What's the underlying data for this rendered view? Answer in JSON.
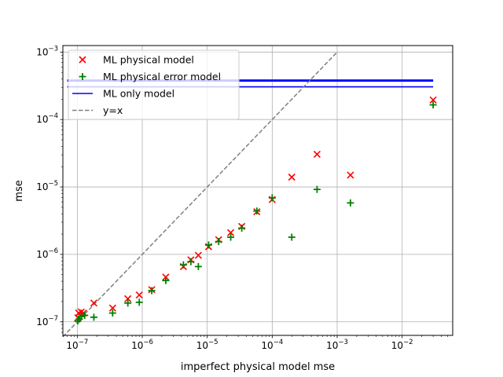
{
  "chart_data": {
    "type": "scatter",
    "title": "",
    "xlabel": "imperfect physical model mse",
    "ylabel": "mse",
    "xscale": "log",
    "yscale": "log",
    "xlim": [
      6e-08,
      0.06
    ],
    "ylim": [
      6.3e-08,
      0.00125
    ],
    "grid": true,
    "legend_position": "top-left",
    "x_ticks": [
      {
        "value": 1e-07,
        "base": "10",
        "exp": "−7"
      },
      {
        "value": 1e-06,
        "base": "10",
        "exp": "−6"
      },
      {
        "value": 1e-05,
        "base": "10",
        "exp": "−5"
      },
      {
        "value": 0.0001,
        "base": "10",
        "exp": "−4"
      },
      {
        "value": 0.001,
        "base": "10",
        "exp": "−3"
      },
      {
        "value": 0.01,
        "base": "10",
        "exp": "−2"
      }
    ],
    "y_ticks": [
      {
        "value": 1e-07,
        "base": "10",
        "exp": "−7"
      },
      {
        "value": 1e-06,
        "base": "10",
        "exp": "−6"
      },
      {
        "value": 1e-05,
        "base": "10",
        "exp": "−5"
      },
      {
        "value": 0.0001,
        "base": "10",
        "exp": "−4"
      },
      {
        "value": 0.001,
        "base": "10",
        "exp": "−3"
      }
    ],
    "series": [
      {
        "name": "ML physical model",
        "kind": "scatter",
        "marker": "x",
        "color": "#ff0000",
        "points": [
          [
            1.02e-07,
            1.15e-07
          ],
          [
            1.05e-07,
            1.35e-07
          ],
          [
            1.15e-07,
            1.4e-07
          ],
          [
            1.25e-07,
            1.35e-07
          ],
          [
            1.8e-07,
            1.9e-07
          ],
          [
            3.5e-07,
            1.6e-07
          ],
          [
            6e-07,
            2.2e-07
          ],
          [
            9e-07,
            2.5e-07
          ],
          [
            1.4e-06,
            3e-07
          ],
          [
            2.3e-06,
            4.6e-07
          ],
          [
            4.3e-06,
            6.6e-07
          ],
          [
            5.6e-06,
            8.3e-07
          ],
          [
            7.3e-06,
            9.7e-07
          ],
          [
            1.05e-05,
            1.3e-06
          ],
          [
            1.5e-05,
            1.65e-06
          ],
          [
            2.3e-05,
            2.1e-06
          ],
          [
            3.4e-05,
            2.6e-06
          ],
          [
            5.8e-05,
            4.3e-06
          ],
          [
            0.0001,
            6.5e-06
          ],
          [
            0.0002,
            1.4e-05
          ],
          [
            0.00049,
            3.05e-05
          ],
          [
            0.0016,
            1.5e-05
          ],
          [
            0.03,
            0.000195
          ]
        ]
      },
      {
        "name": "ML physical error model",
        "kind": "scatter",
        "marker": "+",
        "color": "#008000",
        "points": [
          [
            1.02e-07,
            1.03e-07
          ],
          [
            1.08e-07,
            1.1e-07
          ],
          [
            1.15e-07,
            1.2e-07
          ],
          [
            1.3e-07,
            1.25e-07
          ],
          [
            1.8e-07,
            1.17e-07
          ],
          [
            3.5e-07,
            1.35e-07
          ],
          [
            6e-07,
            1.9e-07
          ],
          [
            9e-07,
            1.95e-07
          ],
          [
            1.4e-06,
            2.9e-07
          ],
          [
            2.3e-06,
            4.1e-07
          ],
          [
            4.3e-06,
            7e-07
          ],
          [
            5.6e-06,
            7.8e-07
          ],
          [
            7.3e-06,
            6.6e-07
          ],
          [
            1.05e-05,
            1.38e-06
          ],
          [
            1.5e-05,
            1.55e-06
          ],
          [
            2.3e-05,
            1.8e-06
          ],
          [
            3.4e-05,
            2.45e-06
          ],
          [
            5.8e-05,
            4.4e-06
          ],
          [
            0.0001,
            6.9e-06
          ],
          [
            0.0002,
            1.8e-06
          ],
          [
            0.00049,
            9.2e-06
          ],
          [
            0.0016,
            5.8e-06
          ],
          [
            0.03,
            0.000165
          ]
        ]
      },
      {
        "name": "ML only model",
        "kind": "hlines",
        "color": "#0000ff",
        "values": [
          0.000305,
          0.000372,
          0.000378,
          0.000385
        ],
        "x_range": [
          7e-08,
          0.03
        ]
      },
      {
        "name": "y=x",
        "kind": "line",
        "style": "dashed",
        "color": "#808080",
        "points": [
          [
            6e-08,
            6e-08
          ],
          [
            0.001,
            0.001
          ]
        ]
      }
    ]
  }
}
